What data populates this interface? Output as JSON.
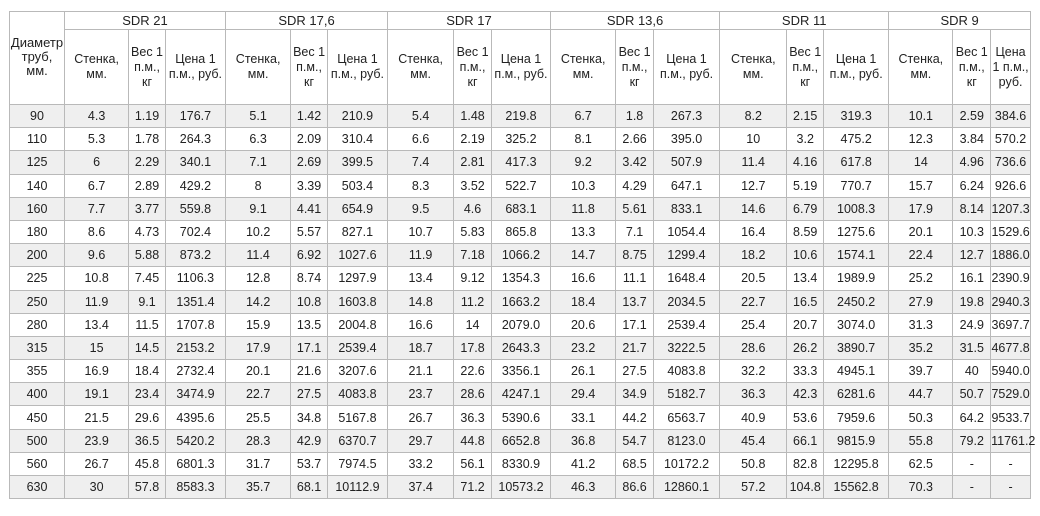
{
  "diameter_header": "Диаметр труб, мм.",
  "groups": [
    "SDR 21",
    "SDR 17,6",
    "SDR 17",
    "SDR 13,6",
    "SDR 11",
    "SDR 9"
  ],
  "col_headers": [
    [
      "Стенка, мм.",
      "Вес 1 п.м., кг",
      "Цена 1 п.м., руб."
    ],
    [
      "Стенка, мм.",
      "Вес 1 п.м., кг",
      "Цена 1 п.м., руб."
    ],
    [
      "Стенка, мм.",
      "Вес 1 п.м., кг",
      "Цена 1 п.м., руб."
    ],
    [
      "Стенка, мм.",
      "Вес 1 п.м., кг",
      "Цена 1 п.м., руб."
    ],
    [
      "Стенка, мм.",
      "Вес 1 п.м., кг",
      "Цена 1 п.м., руб."
    ],
    [
      "Стенка, мм.",
      "Вес 1 п.м., кг",
      "Цена 1 п.м., руб."
    ]
  ],
  "rows": [
    [
      "90",
      "4.3",
      "1.19",
      "176.7",
      "5.1",
      "1.42",
      "210.9",
      "5.4",
      "1.48",
      "219.8",
      "6.7",
      "1.8",
      "267.3",
      "8.2",
      "2.15",
      "319.3",
      "10.1",
      "2.59",
      "384.6"
    ],
    [
      "110",
      "5.3",
      "1.78",
      "264.3",
      "6.3",
      "2.09",
      "310.4",
      "6.6",
      "2.19",
      "325.2",
      "8.1",
      "2.66",
      "395.0",
      "10",
      "3.2",
      "475.2",
      "12.3",
      "3.84",
      "570.2"
    ],
    [
      "125",
      "6",
      "2.29",
      "340.1",
      "7.1",
      "2.69",
      "399.5",
      "7.4",
      "2.81",
      "417.3",
      "9.2",
      "3.42",
      "507.9",
      "11.4",
      "4.16",
      "617.8",
      "14",
      "4.96",
      "736.6"
    ],
    [
      "140",
      "6.7",
      "2.89",
      "429.2",
      "8",
      "3.39",
      "503.4",
      "8.3",
      "3.52",
      "522.7",
      "10.3",
      "4.29",
      "647.1",
      "12.7",
      "5.19",
      "770.7",
      "15.7",
      "6.24",
      "926.6"
    ],
    [
      "160",
      "7.7",
      "3.77",
      "559.8",
      "9.1",
      "4.41",
      "654.9",
      "9.5",
      "4.6",
      "683.1",
      "11.8",
      "5.61",
      "833.1",
      "14.6",
      "6.79",
      "1008.3",
      "17.9",
      "8.14",
      "1207.3"
    ],
    [
      "180",
      "8.6",
      "4.73",
      "702.4",
      "10.2",
      "5.57",
      "827.1",
      "10.7",
      "5.83",
      "865.8",
      "13.3",
      "7.1",
      "1054.4",
      "16.4",
      "8.59",
      "1275.6",
      "20.1",
      "10.3",
      "1529.6"
    ],
    [
      "200",
      "9.6",
      "5.88",
      "873.2",
      "11.4",
      "6.92",
      "1027.6",
      "11.9",
      "7.18",
      "1066.2",
      "14.7",
      "8.75",
      "1299.4",
      "18.2",
      "10.6",
      "1574.1",
      "22.4",
      "12.7",
      "1886.0"
    ],
    [
      "225",
      "10.8",
      "7.45",
      "1106.3",
      "12.8",
      "8.74",
      "1297.9",
      "13.4",
      "9.12",
      "1354.3",
      "16.6",
      "11.1",
      "1648.4",
      "20.5",
      "13.4",
      "1989.9",
      "25.2",
      "16.1",
      "2390.9"
    ],
    [
      "250",
      "11.9",
      "9.1",
      "1351.4",
      "14.2",
      "10.8",
      "1603.8",
      "14.8",
      "11.2",
      "1663.2",
      "18.4",
      "13.7",
      "2034.5",
      "22.7",
      "16.5",
      "2450.2",
      "27.9",
      "19.8",
      "2940.3"
    ],
    [
      "280",
      "13.4",
      "11.5",
      "1707.8",
      "15.9",
      "13.5",
      "2004.8",
      "16.6",
      "14",
      "2079.0",
      "20.6",
      "17.1",
      "2539.4",
      "25.4",
      "20.7",
      "3074.0",
      "31.3",
      "24.9",
      "3697.7"
    ],
    [
      "315",
      "15",
      "14.5",
      "2153.2",
      "17.9",
      "17.1",
      "2539.4",
      "18.7",
      "17.8",
      "2643.3",
      "23.2",
      "21.7",
      "3222.5",
      "28.6",
      "26.2",
      "3890.7",
      "35.2",
      "31.5",
      "4677.8"
    ],
    [
      "355",
      "16.9",
      "18.4",
      "2732.4",
      "20.1",
      "21.6",
      "3207.6",
      "21.1",
      "22.6",
      "3356.1",
      "26.1",
      "27.5",
      "4083.8",
      "32.2",
      "33.3",
      "4945.1",
      "39.7",
      "40",
      "5940.0"
    ],
    [
      "400",
      "19.1",
      "23.4",
      "3474.9",
      "22.7",
      "27.5",
      "4083.8",
      "23.7",
      "28.6",
      "4247.1",
      "29.4",
      "34.9",
      "5182.7",
      "36.3",
      "42.3",
      "6281.6",
      "44.7",
      "50.7",
      "7529.0"
    ],
    [
      "450",
      "21.5",
      "29.6",
      "4395.6",
      "25.5",
      "34.8",
      "5167.8",
      "26.7",
      "36.3",
      "5390.6",
      "33.1",
      "44.2",
      "6563.7",
      "40.9",
      "53.6",
      "7959.6",
      "50.3",
      "64.2",
      "9533.7"
    ],
    [
      "500",
      "23.9",
      "36.5",
      "5420.2",
      "28.3",
      "42.9",
      "6370.7",
      "29.7",
      "44.8",
      "6652.8",
      "36.8",
      "54.7",
      "8123.0",
      "45.4",
      "66.1",
      "9815.9",
      "55.8",
      "79.2",
      "11761.2"
    ],
    [
      "560",
      "26.7",
      "45.8",
      "6801.3",
      "31.7",
      "53.7",
      "7974.5",
      "33.2",
      "56.1",
      "8330.9",
      "41.2",
      "68.5",
      "10172.2",
      "50.8",
      "82.8",
      "12295.8",
      "62.5",
      "-",
      "-"
    ],
    [
      "630",
      "30",
      "57.8",
      "8583.3",
      "35.7",
      "68.1",
      "10112.9",
      "37.4",
      "71.2",
      "10573.2",
      "46.3",
      "86.6",
      "12860.1",
      "57.2",
      "104.8",
      "15562.8",
      "70.3",
      "-",
      "-"
    ]
  ]
}
